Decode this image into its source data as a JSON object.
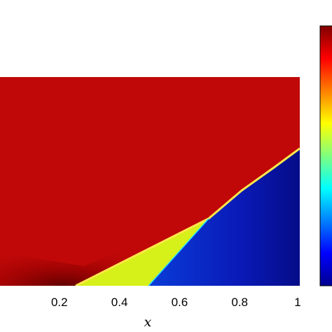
{
  "chart_data": {
    "type": "heatmap",
    "title": "",
    "xlabel": "x",
    "ylabel": "",
    "xlim": [
      0,
      1
    ],
    "x_ticks": [
      {
        "value": 0.2,
        "label": "0.2"
      },
      {
        "value": 0.4,
        "label": "0.4"
      },
      {
        "value": 0.6,
        "label": "0.6"
      },
      {
        "value": 0.8,
        "label": "0.8"
      },
      {
        "value": 1.0,
        "label": "1"
      }
    ],
    "colormap": "jet",
    "colorbar": {
      "position": "right",
      "tick_labels": []
    },
    "regions": [
      {
        "name": "",
        "color": "#c00808",
        "boundary_x": [
          0.0,
          1.0
        ]
      },
      {
        "name": "",
        "color": "#d6f019",
        "boundary_x": [
          0.25,
          0.7
        ]
      },
      {
        "name": "",
        "color": "#0a1ab0",
        "boundary_x": [
          0.5,
          1.0
        ]
      }
    ],
    "features": {
      "shock_front_x": [
        0.25,
        0.7,
        1.0
      ],
      "rarefaction_x": [
        0.7,
        0.5
      ],
      "grid": false
    }
  }
}
